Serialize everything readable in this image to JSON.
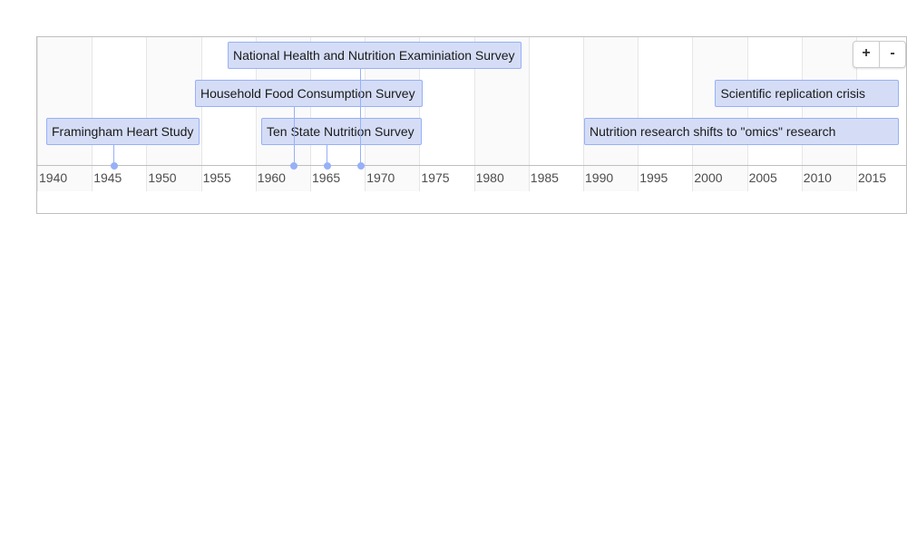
{
  "timeline": {
    "axis": {
      "start_year": 1940,
      "end_year": 2019,
      "tick_labels": [
        "1940",
        "1945",
        "1950",
        "1955",
        "1960",
        "1965",
        "1970",
        "1975",
        "1980",
        "1985",
        "1990",
        "1995",
        "2000",
        "2005",
        "2010",
        "2015"
      ]
    },
    "events": [
      {
        "label": "Framingham Heart Study",
        "type": "point",
        "year": 1947.0
      },
      {
        "label": "National Health and Nutrition Examiniation Survey",
        "type": "point",
        "year": 1969.6
      },
      {
        "label": "Household Food Consumption Survey",
        "type": "point",
        "year": 1963.5
      },
      {
        "label": "Ten State Nutrition Survey",
        "type": "point",
        "year": 1966.5
      },
      {
        "label": "Scientific replication crisis",
        "type": "range",
        "start_year": 2002,
        "end_year": 2019
      },
      {
        "label": "Nutrition research shifts to \"omics\" research",
        "type": "range",
        "start_year": 1990,
        "end_year": 2019
      }
    ],
    "colors": {
      "item_fill": "#d5ddf6",
      "item_border": "#97b0f8"
    }
  },
  "controls": {
    "zoom_in_label": "+",
    "zoom_out_label": "-"
  }
}
